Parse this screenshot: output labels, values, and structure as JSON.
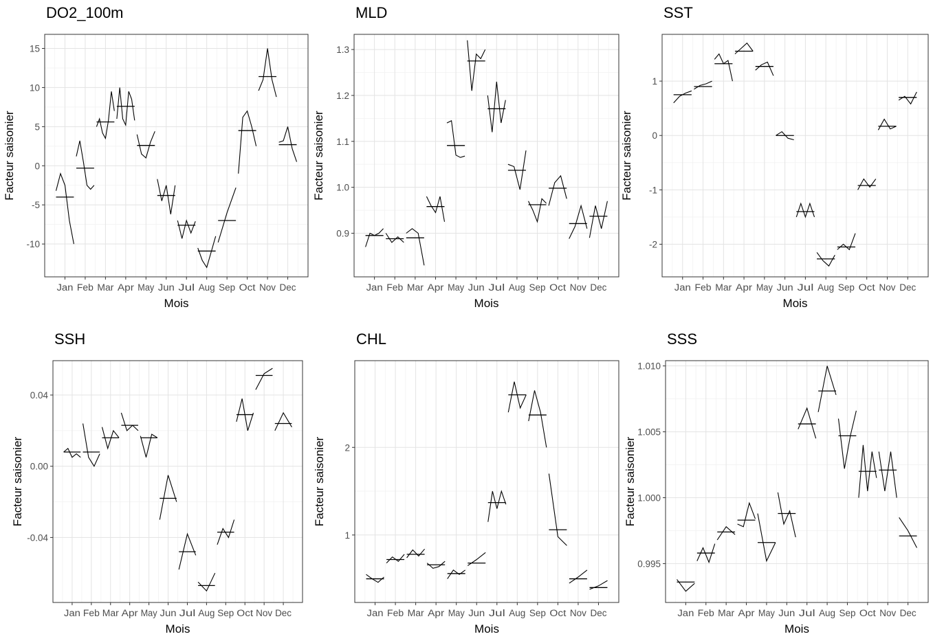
{
  "chart_data": [
    {
      "type": "line",
      "title": "DO2_100m",
      "xlabel": "Mois",
      "ylabel": "Facteur saisonier",
      "categories": [
        "Jan",
        "Feb",
        "Mar",
        "Apr",
        "May",
        "Jun",
        "Jul",
        "Aug",
        "Sep",
        "Oct",
        "Nov",
        "Dec"
      ],
      "ylim": [
        -14.2,
        16.8
      ],
      "yticks": [
        15,
        10,
        5,
        0,
        -5,
        -10
      ],
      "ytick_labels": [
        "15",
        "10",
        "5",
        "0",
        "-5",
        "-10"
      ],
      "means": [
        -4,
        -0.3,
        5.6,
        7.6,
        2.6,
        -3.8,
        -7.6,
        -10.9,
        -7,
        4.5,
        11.4,
        2.7
      ],
      "sub_series": [
        [
          -3.2,
          -1,
          -2.5,
          -7,
          -10
        ],
        [
          1.2,
          3.2,
          0.5,
          -2.5,
          -3,
          -2.5
        ],
        [
          5,
          6,
          4.2,
          3.5,
          5.8,
          9.5,
          7
        ],
        [
          6,
          10,
          6,
          5.2,
          9.5,
          8.5,
          5.8
        ],
        [
          4,
          1.5,
          1,
          3,
          4.4
        ],
        [
          -1.7,
          -4.5,
          -2.5,
          -6.2,
          -2.5
        ],
        [
          -7,
          -9.3,
          -7,
          -8.6,
          -7.1
        ],
        [
          -10.5,
          -12.1,
          -13,
          -11,
          -9
        ],
        [
          -9.8,
          -6,
          -2.8
        ],
        [
          -1,
          6.2,
          7,
          5,
          2.5
        ],
        [
          9.6,
          11,
          15,
          11,
          8.8
        ],
        [
          3,
          3.2,
          5,
          2.2,
          0.5
        ]
      ]
    },
    {
      "type": "line",
      "title": "MLD",
      "xlabel": "Mois",
      "ylabel": "Facteur saisonier",
      "categories": [
        "Jan",
        "Feb",
        "Mar",
        "Apr",
        "May",
        "Jun",
        "Jul",
        "Aug",
        "Sep",
        "Oct",
        "Nov",
        "Dec"
      ],
      "ylim": [
        0.805,
        1.333
      ],
      "yticks": [
        1.3,
        1.2,
        1.1,
        1.0,
        0.9
      ],
      "ytick_labels": [
        "1.3",
        "1.2",
        "1.1",
        "1.0",
        "0.9"
      ],
      "means": [
        0.895,
        0.888,
        0.89,
        0.958,
        1.091,
        1.275,
        1.171,
        1.037,
        0.962,
        0.998,
        0.921,
        0.937
      ],
      "sub_series": [
        [
          0.87,
          0.9,
          0.895,
          0.9,
          0.91
        ],
        [
          0.9,
          0.88,
          0.892,
          0.88
        ],
        [
          0.9,
          0.91,
          0.9,
          0.83
        ],
        [
          0.98,
          0.96,
          0.945,
          0.98,
          0.925
        ],
        [
          1.14,
          1.145,
          1.07,
          1.065,
          1.068
        ],
        [
          1.32,
          1.21,
          1.29,
          1.28,
          1.3
        ],
        [
          1.2,
          1.12,
          1.23,
          1.14,
          1.19
        ],
        [
          1.05,
          1.045,
          0.995,
          1.08
        ],
        [
          0.97,
          0.95,
          0.925,
          0.975,
          0.965
        ],
        [
          0.96,
          1.01,
          1.025,
          0.975
        ],
        [
          0.888,
          0.915,
          0.96,
          0.91
        ],
        [
          0.89,
          0.96,
          0.91,
          0.97
        ]
      ]
    },
    {
      "type": "line",
      "title": "SST",
      "xlabel": "Mois",
      "ylabel": "Facteur saisonier",
      "categories": [
        "Jan",
        "Feb",
        "Mar",
        "Apr",
        "May",
        "Jun",
        "Jul",
        "Aug",
        "Sep",
        "Oct",
        "Nov",
        "Dec"
      ],
      "ylim": [
        -2.6,
        1.86
      ],
      "yticks": [
        1,
        0,
        -1,
        -2
      ],
      "ytick_labels": [
        "1",
        "0",
        "-1",
        "-2"
      ],
      "means": [
        0.75,
        0.9,
        1.32,
        1.55,
        1.27,
        0,
        -1.4,
        -2.27,
        -2.05,
        -0.92,
        0.17,
        0.7
      ],
      "sub_series": [
        [
          0.6,
          0.72,
          0.78,
          0.82
        ],
        [
          0.85,
          0.92,
          0.95,
          1.0
        ],
        [
          1.4,
          1.5,
          1.32,
          1.38,
          1.0
        ],
        [
          1.5,
          1.6,
          1.7,
          1.55
        ],
        [
          1.2,
          1.3,
          1.35,
          1.1
        ],
        [
          0.0,
          0.07,
          -0.05,
          -0.08
        ],
        [
          -1.5,
          -1.25,
          -1.5,
          -1.25,
          -1.5
        ],
        [
          -2.15,
          -2.3,
          -2.4,
          -2.2
        ],
        [
          -2.1,
          -2.0,
          -2.1,
          -1.8
        ],
        [
          -1.0,
          -0.8,
          -0.95,
          -0.8
        ],
        [
          0.1,
          0.3,
          0.12,
          0.17
        ],
        [
          0.65,
          0.72,
          0.58,
          0.8
        ]
      ]
    },
    {
      "type": "line",
      "title": "SSH",
      "xlabel": "Mois",
      "ylabel": "Facteur saisonier",
      "categories": [
        "Jan",
        "Feb",
        "Mar",
        "Apr",
        "May",
        "Jun",
        "Jul",
        "Aug",
        "Sep",
        "Oct",
        "Nov",
        "Dec"
      ],
      "ylim": [
        -0.0765,
        0.0593
      ],
      "yticks": [
        0.04,
        0.0,
        -0.04
      ],
      "ytick_labels": [
        "0.04",
        "0.00",
        "-0.04"
      ],
      "means": [
        0.008,
        0.008,
        0.016,
        0.023,
        0.016,
        -0.018,
        -0.048,
        -0.067,
        -0.037,
        0.029,
        0.051,
        0.024
      ],
      "sub_series": [
        [
          0.008,
          0.01,
          0.005,
          0.007,
          0.005
        ],
        [
          0.024,
          0.005,
          0.0,
          0.007
        ],
        [
          0.022,
          0.01,
          0.02,
          0.016
        ],
        [
          0.03,
          0.02,
          0.023,
          0.02
        ],
        [
          0.017,
          0.005,
          0.018,
          0.016
        ],
        [
          -0.03,
          -0.005,
          -0.02
        ],
        [
          -0.058,
          -0.038,
          -0.05
        ],
        [
          -0.065,
          -0.07,
          -0.06
        ],
        [
          -0.044,
          -0.035,
          -0.04,
          -0.03
        ],
        [
          0.025,
          0.038,
          0.02,
          0.03
        ],
        [
          0.043,
          0.052,
          0.055
        ],
        [
          0.02,
          0.03,
          0.022
        ]
      ]
    },
    {
      "type": "line",
      "title": "CHL",
      "xlabel": "Mois",
      "ylabel": "Facteur saisonier",
      "categories": [
        "Jan",
        "Feb",
        "Mar",
        "Apr",
        "May",
        "Jun",
        "Jul",
        "Aug",
        "Sep",
        "Oct",
        "Nov",
        "Dec"
      ],
      "ylim": [
        0.23,
        2.99
      ],
      "yticks": [
        2,
        1
      ],
      "ytick_labels": [
        "2",
        "1"
      ],
      "means": [
        0.5,
        0.72,
        0.78,
        0.66,
        0.56,
        0.68,
        1.37,
        2.6,
        2.37,
        1.06,
        0.5,
        0.4
      ],
      "sub_series": [
        [
          0.55,
          0.5,
          0.46,
          0.52
        ],
        [
          0.68,
          0.75,
          0.7,
          0.78
        ],
        [
          0.74,
          0.83,
          0.76,
          0.84
        ],
        [
          0.68,
          0.62,
          0.64,
          0.7
        ],
        [
          0.5,
          0.6,
          0.55,
          0.6
        ],
        [
          0.65,
          0.72,
          0.8
        ],
        [
          1.15,
          1.5,
          1.3,
          1.5,
          1.35
        ],
        [
          2.4,
          2.75,
          2.45,
          2.6
        ],
        [
          2.3,
          2.65,
          2.4,
          2.0
        ],
        [
          1.7,
          0.98,
          0.88
        ],
        [
          0.45,
          0.52,
          0.6
        ],
        [
          0.38,
          0.42,
          0.48
        ]
      ]
    },
    {
      "type": "line",
      "title": "SSS",
      "xlabel": "Mois",
      "ylabel": "Facteur saisonier",
      "categories": [
        "Jan",
        "Feb",
        "Mar",
        "Apr",
        "May",
        "Jun",
        "Jul",
        "Aug",
        "Sep",
        "Oct",
        "Nov",
        "Dec"
      ],
      "ylim": [
        0.99205,
        1.0104
      ],
      "yticks": [
        1.01,
        1.005,
        1.0,
        0.995
      ],
      "ytick_labels": [
        "1.010",
        "1.005",
        "1.000",
        "0.995"
      ],
      "means": [
        0.9936,
        0.9958,
        0.9974,
        0.9983,
        0.9966,
        0.9988,
        1.0056,
        1.0081,
        1.0047,
        1.002,
        1.0021,
        0.9971
      ],
      "sub_series": [
        [
          0.9938,
          0.9929,
          0.9935
        ],
        [
          0.9952,
          0.9962,
          0.9951,
          0.9965
        ],
        [
          0.9968,
          0.9978,
          0.9972
        ],
        [
          0.998,
          0.9978,
          0.9996,
          0.9984
        ],
        [
          0.9988,
          0.9952,
          0.9966
        ],
        [
          1.0004,
          0.998,
          0.999,
          0.997
        ],
        [
          1.0052,
          1.0068,
          1.0045
        ],
        [
          1.0065,
          1.01,
          1.0078
        ],
        [
          1.006,
          1.0022,
          1.0047,
          1.0066
        ],
        [
          1.0,
          1.004,
          1.0005,
          1.0035,
          1.0015
        ],
        [
          1.0035,
          1.0005,
          1.0035,
          1.0
        ],
        [
          0.9985,
          0.9975,
          0.9962
        ]
      ]
    }
  ]
}
